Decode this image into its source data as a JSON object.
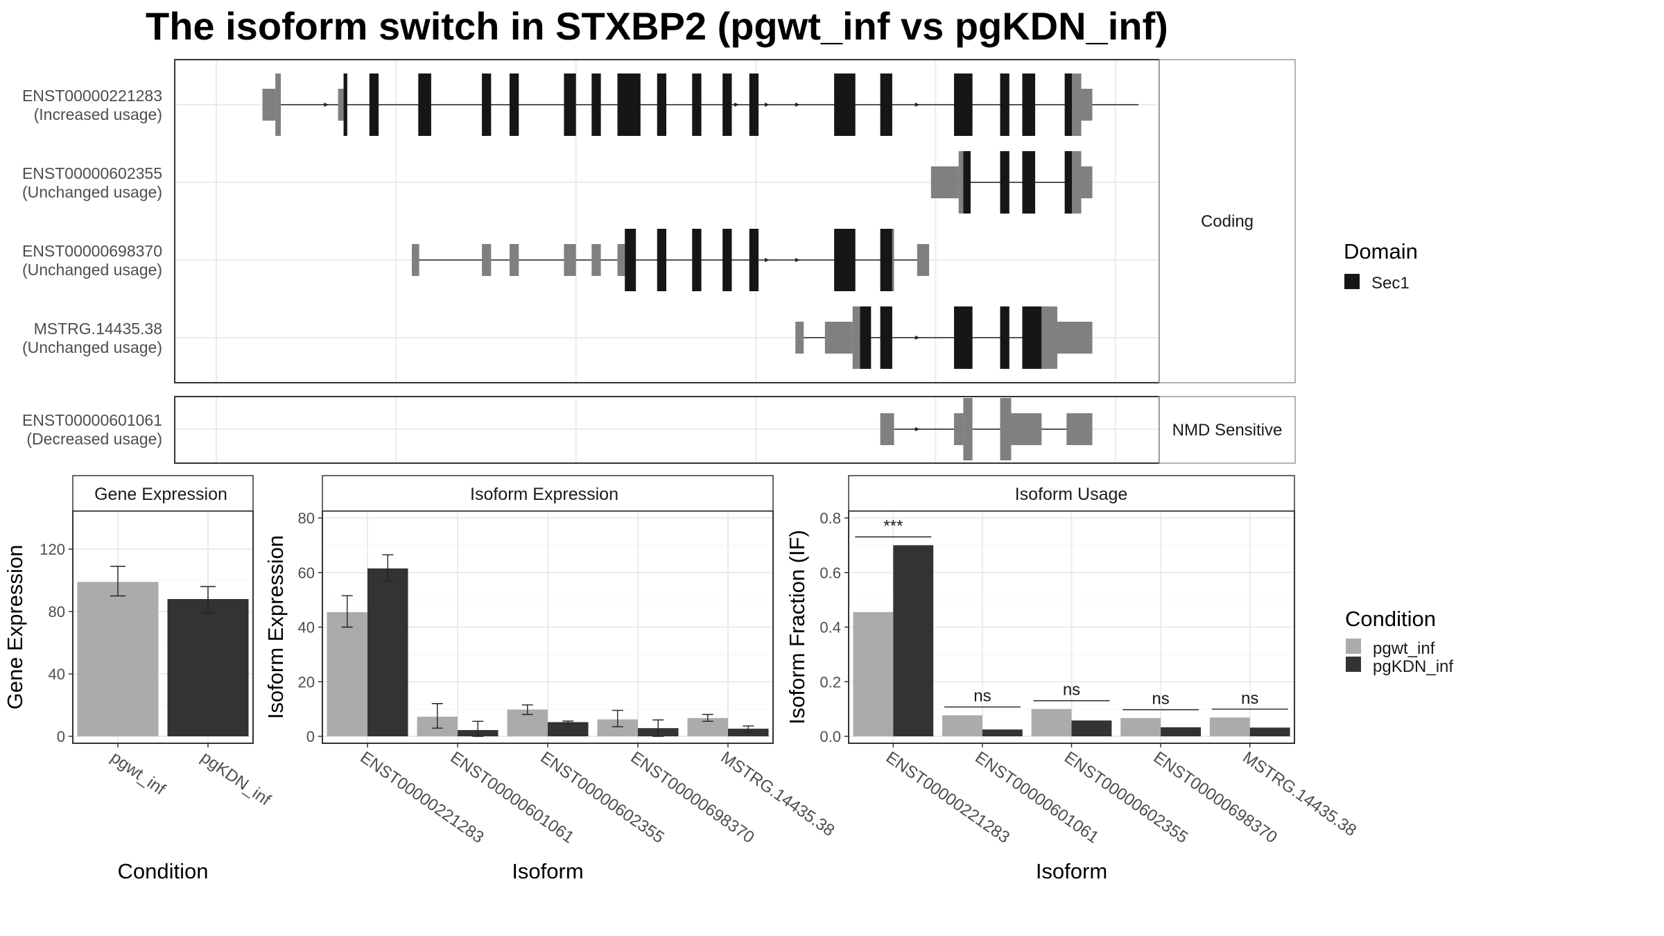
{
  "title": "The isoform switch in STXBP2 (pgwt_inf vs pgKDN_inf)",
  "colors": {
    "pgwt_inf": "#ababab",
    "pgKDN_inf": "#333333",
    "domain_sec1": "#161616",
    "non_coding_exon": "#808080",
    "panel_border": "#333333",
    "strip_fill": "#ffffff",
    "grid": "#ebebeb"
  },
  "structure": {
    "groups": [
      {
        "strip_label": "Coding",
        "transcripts": [
          {
            "label_line1": "ENST00000221283",
            "label_line2": "(Increased usage)",
            "intron": [
              0.058,
              1.0
            ],
            "exons": [
              {
                "start": 0.05,
                "end": 0.064,
                "kind": "utr"
              },
              {
                "start": 0.064,
                "end": 0.07,
                "kind": "cds"
              },
              {
                "start": 0.132,
                "end": 0.138,
                "kind": "utr"
              },
              {
                "start": 0.138,
                "end": 0.142,
                "kind": "domain"
              },
              {
                "start": 0.166,
                "end": 0.176,
                "kind": "domain"
              },
              {
                "start": 0.219,
                "end": 0.233,
                "kind": "domain"
              },
              {
                "start": 0.288,
                "end": 0.298,
                "kind": "domain"
              },
              {
                "start": 0.318,
                "end": 0.328,
                "kind": "domain"
              },
              {
                "start": 0.377,
                "end": 0.39,
                "kind": "domain"
              },
              {
                "start": 0.407,
                "end": 0.417,
                "kind": "domain"
              },
              {
                "start": 0.435,
                "end": 0.46,
                "kind": "domain"
              },
              {
                "start": 0.478,
                "end": 0.488,
                "kind": "domain"
              },
              {
                "start": 0.516,
                "end": 0.526,
                "kind": "domain"
              },
              {
                "start": 0.549,
                "end": 0.559,
                "kind": "domain"
              },
              {
                "start": 0.578,
                "end": 0.588,
                "kind": "domain"
              },
              {
                "start": 0.67,
                "end": 0.693,
                "kind": "domain"
              },
              {
                "start": 0.72,
                "end": 0.733,
                "kind": "domain"
              },
              {
                "start": 0.8,
                "end": 0.82,
                "kind": "domain"
              },
              {
                "start": 0.85,
                "end": 0.86,
                "kind": "domain"
              },
              {
                "start": 0.874,
                "end": 0.888,
                "kind": "domain"
              },
              {
                "start": 0.92,
                "end": 0.928,
                "kind": "domain"
              },
              {
                "start": 0.928,
                "end": 0.938,
                "kind": "cds"
              },
              {
                "start": 0.938,
                "end": 0.95,
                "kind": "utr"
              }
            ],
            "arrows": [
              0.068,
              0.122,
              0.567,
              0.6,
              0.633,
              0.763,
              0.81
            ]
          },
          {
            "label_line1": "ENST00000602355",
            "label_line2": "(Unchanged usage)",
            "intron": [
              0.78,
              0.95
            ],
            "exons": [
              {
                "start": 0.775,
                "end": 0.805,
                "kind": "utr"
              },
              {
                "start": 0.805,
                "end": 0.81,
                "kind": "cds"
              },
              {
                "start": 0.81,
                "end": 0.818,
                "kind": "domain"
              },
              {
                "start": 0.85,
                "end": 0.86,
                "kind": "domain"
              },
              {
                "start": 0.874,
                "end": 0.888,
                "kind": "domain"
              },
              {
                "start": 0.92,
                "end": 0.928,
                "kind": "domain"
              },
              {
                "start": 0.928,
                "end": 0.938,
                "kind": "cds"
              },
              {
                "start": 0.938,
                "end": 0.95,
                "kind": "utr"
              }
            ],
            "arrows": []
          },
          {
            "label_line1": "ENST00000698370",
            "label_line2": "(Unchanged usage)",
            "intron": [
              0.212,
              0.77
            ],
            "exons": [
              {
                "start": 0.212,
                "end": 0.22,
                "kind": "utr"
              },
              {
                "start": 0.288,
                "end": 0.298,
                "kind": "utr"
              },
              {
                "start": 0.318,
                "end": 0.328,
                "kind": "utr"
              },
              {
                "start": 0.377,
                "end": 0.39,
                "kind": "utr"
              },
              {
                "start": 0.407,
                "end": 0.417,
                "kind": "utr"
              },
              {
                "start": 0.435,
                "end": 0.443,
                "kind": "utr"
              },
              {
                "start": 0.443,
                "end": 0.455,
                "kind": "domain"
              },
              {
                "start": 0.478,
                "end": 0.488,
                "kind": "domain"
              },
              {
                "start": 0.516,
                "end": 0.526,
                "kind": "domain"
              },
              {
                "start": 0.549,
                "end": 0.559,
                "kind": "domain"
              },
              {
                "start": 0.578,
                "end": 0.588,
                "kind": "domain"
              },
              {
                "start": 0.67,
                "end": 0.693,
                "kind": "domain"
              },
              {
                "start": 0.72,
                "end": 0.733,
                "kind": "domain"
              },
              {
                "start": 0.733,
                "end": 0.735,
                "kind": "cds"
              },
              {
                "start": 0.76,
                "end": 0.773,
                "kind": "utr"
              }
            ],
            "arrows": [
              0.6,
              0.633
            ]
          },
          {
            "label_line1": "MSTRG.14435.38",
            "label_line2": "(Unchanged usage)",
            "intron": [
              0.63,
              0.95
            ],
            "exons": [
              {
                "start": 0.628,
                "end": 0.637,
                "kind": "utr"
              },
              {
                "start": 0.66,
                "end": 0.69,
                "kind": "utr"
              },
              {
                "start": 0.69,
                "end": 0.698,
                "kind": "cds"
              },
              {
                "start": 0.698,
                "end": 0.71,
                "kind": "domain"
              },
              {
                "start": 0.72,
                "end": 0.733,
                "kind": "domain"
              },
              {
                "start": 0.8,
                "end": 0.82,
                "kind": "domain"
              },
              {
                "start": 0.85,
                "end": 0.86,
                "kind": "domain"
              },
              {
                "start": 0.874,
                "end": 0.895,
                "kind": "domain"
              },
              {
                "start": 0.895,
                "end": 0.912,
                "kind": "cds"
              },
              {
                "start": 0.912,
                "end": 0.95,
                "kind": "utr"
              }
            ],
            "arrows": [
              0.763,
              0.81
            ]
          }
        ]
      },
      {
        "strip_label": "NMD Sensitive",
        "transcripts": [
          {
            "label_line1": "ENST00000601061",
            "label_line2": "(Decreased usage)",
            "intron": [
              0.735,
              0.95
            ],
            "exons": [
              {
                "start": 0.72,
                "end": 0.735,
                "kind": "utr"
              },
              {
                "start": 0.8,
                "end": 0.81,
                "kind": "utr"
              },
              {
                "start": 0.81,
                "end": 0.82,
                "kind": "cds"
              },
              {
                "start": 0.85,
                "end": 0.862,
                "kind": "cds"
              },
              {
                "start": 0.862,
                "end": 0.895,
                "kind": "utr"
              },
              {
                "start": 0.922,
                "end": 0.95,
                "kind": "utr"
              }
            ],
            "arrows": [
              0.763,
              0.81
            ]
          }
        ]
      }
    ]
  },
  "legend_domain": {
    "title": "Domain",
    "items": [
      {
        "label": "Sec1",
        "color": "#161616"
      }
    ]
  },
  "legend_condition": {
    "title": "Condition",
    "items": [
      {
        "label": "pgwt_inf",
        "color": "#ababab"
      },
      {
        "label": "pgKDN_inf",
        "color": "#333333"
      }
    ]
  },
  "chart_data": [
    {
      "type": "bar",
      "title": "Gene Expression",
      "xlabel": "Condition",
      "ylabel": "Gene Expression",
      "ylim": [
        0,
        140
      ],
      "yticks": [
        0,
        40,
        80,
        120
      ],
      "categories": [
        "pgwt_inf",
        "pgKDN_inf"
      ],
      "values": [
        99,
        88
      ],
      "errors": [
        [
          90,
          109
        ],
        [
          79,
          96
        ]
      ]
    },
    {
      "type": "bar",
      "title": "Isoform Expression",
      "xlabel": "Isoform",
      "ylabel": "Isoform Expression",
      "ylim": [
        0,
        80
      ],
      "yticks": [
        0,
        20,
        40,
        60,
        80
      ],
      "categories": [
        "ENST00000221283",
        "ENST00000601061",
        "ENST00000602355",
        "ENST00000698370",
        "MSTRG.14435.38"
      ],
      "series": [
        {
          "name": "pgwt_inf",
          "values": [
            45.5,
            7.2,
            9.8,
            6.2,
            6.7
          ],
          "errors": [
            [
              40,
              51.5
            ],
            [
              3,
              12
            ],
            [
              8,
              11.5
            ],
            [
              3.5,
              9.5
            ],
            [
              5.5,
              8
            ]
          ]
        },
        {
          "name": "pgKDN_inf",
          "values": [
            61.5,
            2.3,
            5.2,
            3.0,
            2.8
          ],
          "errors": [
            [
              57,
              66.5
            ],
            [
              0,
              5.5
            ],
            [
              4.8,
              5.6
            ],
            [
              0,
              6
            ],
            [
              1.5,
              3.8
            ]
          ]
        }
      ]
    },
    {
      "type": "bar",
      "title": "Isoform Usage",
      "xlabel": "Isoform",
      "ylabel": "Isoform Fraction (IF)",
      "ylim": [
        0,
        0.8
      ],
      "yticks": [
        0.0,
        0.2,
        0.4,
        0.6,
        0.8
      ],
      "categories": [
        "ENST00000221283",
        "ENST00000601061",
        "ENST00000602355",
        "ENST00000698370",
        "MSTRG.14435.38"
      ],
      "series": [
        {
          "name": "pgwt_inf",
          "values": [
            0.455,
            0.077,
            0.1,
            0.067,
            0.069
          ]
        },
        {
          "name": "pgKDN_inf",
          "values": [
            0.7,
            0.025,
            0.058,
            0.033,
            0.032
          ]
        }
      ],
      "significance": [
        "***",
        "ns",
        "ns",
        "ns",
        "ns"
      ]
    }
  ]
}
